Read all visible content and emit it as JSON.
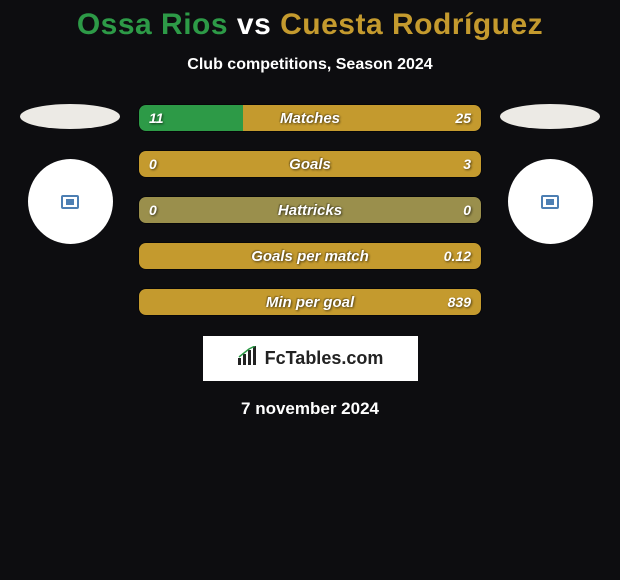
{
  "header": {
    "player1": "Ossa Rios",
    "vs": "vs",
    "player2": "Cuesta Rodríguez",
    "subtitle": "Club competitions, Season 2024"
  },
  "colors": {
    "player1": "#2d9a47",
    "player2": "#c49a2e",
    "bar_default": "#9a8f4c",
    "bar_bg": "#9a8f4c",
    "badge1": "#4d7fb3",
    "badge2": "#4d7fb3"
  },
  "bars": [
    {
      "label": "Matches",
      "left_val": "11",
      "right_val": "25",
      "left_pct": 30.5,
      "right_pct": 69.5,
      "left_color": "#2d9a47",
      "right_color": "#c49a2e"
    },
    {
      "label": "Goals",
      "left_val": "0",
      "right_val": "3",
      "left_pct": 0,
      "right_pct": 100,
      "left_color": "#2d9a47",
      "right_color": "#c49a2e"
    },
    {
      "label": "Hattricks",
      "left_val": "0",
      "right_val": "0",
      "left_pct": 50,
      "right_pct": 50,
      "left_color": "#9a8f4c",
      "right_color": "#9a8f4c"
    },
    {
      "label": "Goals per match",
      "left_val": "",
      "right_val": "0.12",
      "left_pct": 0,
      "right_pct": 100,
      "left_color": "#2d9a47",
      "right_color": "#c49a2e"
    },
    {
      "label": "Min per goal",
      "left_val": "",
      "right_val": "839",
      "left_pct": 0,
      "right_pct": 100,
      "left_color": "#2d9a47",
      "right_color": "#c49a2e"
    }
  ],
  "footer": {
    "logo_text": "FcTables.com",
    "date": "7 november 2024"
  }
}
